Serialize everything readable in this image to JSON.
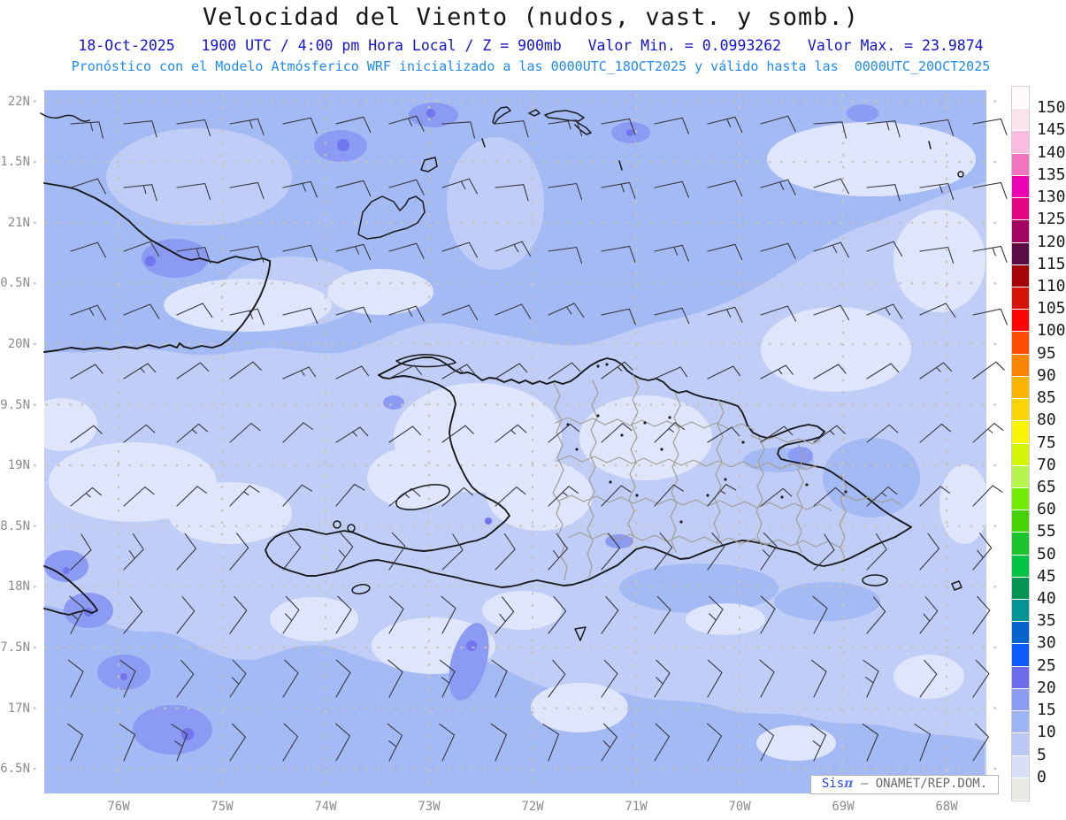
{
  "header": {
    "title": "Velocidad del Viento (nudos, vast. y somb.)",
    "line2": "18-Oct-2025   1900 UTC / 4:00 pm Hora Local / Z = 900mb   Valor Min. = 0.0993262   Valor Max. = 23.9874",
    "line3": "Pronóstico con el Modelo Atmósferico WRF inicializado a las 0000UTC_18OCT2025 y válido hasta las  0000UTC_20OCT2025",
    "title_color": "#161616",
    "line2_color": "#1212dc",
    "line3_color": "#1e8cf8"
  },
  "axes": {
    "lat_labels": [
      "22N",
      "1.5N",
      "21N",
      "0.5N",
      "20N",
      "9.5N",
      "19N",
      "8.5N",
      "18N",
      "7.5N",
      "17N",
      "6.5N"
    ],
    "lon_labels": [
      "76W",
      "75W",
      "74W",
      "73W",
      "72W",
      "71W",
      "70W",
      "69W",
      "68W"
    ],
    "label_color": "#8c8c8c"
  },
  "colorbar": {
    "tick_labels": [
      "150",
      "145",
      "140",
      "135",
      "130",
      "125",
      "120",
      "115",
      "110",
      "105",
      "100",
      "95",
      "90",
      "85",
      "80",
      "75",
      "70",
      "65",
      "60",
      "55",
      "50",
      "45",
      "40",
      "35",
      "30",
      "25",
      "20",
      "15",
      "10",
      "5",
      "0"
    ],
    "segments_top_to_bottom": [
      {
        "range": "above-150",
        "color": "#fffbfb"
      },
      {
        "range": "145-150",
        "color": "#fce4ee"
      },
      {
        "range": "140-145",
        "color": "#f8bce0"
      },
      {
        "range": "135-140",
        "color": "#f074c0"
      },
      {
        "range": "130-135",
        "color": "#ec04b4"
      },
      {
        "range": "125-130",
        "color": "#e40484"
      },
      {
        "range": "120-125",
        "color": "#a40464"
      },
      {
        "range": "115-120",
        "color": "#5c0c44"
      },
      {
        "range": "110-115",
        "color": "#a40404"
      },
      {
        "range": "105-110",
        "color": "#d41404"
      },
      {
        "range": "100-105",
        "color": "#fc0400"
      },
      {
        "range": "95-100",
        "color": "#fc4c04"
      },
      {
        "range": "90-95",
        "color": "#fc8404"
      },
      {
        "range": "85-90",
        "color": "#fcb404"
      },
      {
        "range": "80-85",
        "color": "#fcd404"
      },
      {
        "range": "75-80",
        "color": "#f8f404"
      },
      {
        "range": "70-75",
        "color": "#d4f404"
      },
      {
        "range": "65-70",
        "color": "#b4f44c"
      },
      {
        "range": "60-65",
        "color": "#74ec04"
      },
      {
        "range": "55-60",
        "color": "#44d404"
      },
      {
        "range": "50-55",
        "color": "#1cc42c"
      },
      {
        "range": "45-50",
        "color": "#04c444"
      },
      {
        "range": "40-45",
        "color": "#049454"
      },
      {
        "range": "35-40",
        "color": "#049494"
      },
      {
        "range": "30-35",
        "color": "#0464cc"
      },
      {
        "range": "25-30",
        "color": "#0c5cfc"
      },
      {
        "range": "20-25",
        "color": "#6c6cec"
      },
      {
        "range": "15-20",
        "color": "#8c9cf4"
      },
      {
        "range": "10-15",
        "color": "#9cb4f4"
      },
      {
        "range": "5-10",
        "color": "#bcc8f4"
      },
      {
        "range": "0-5",
        "color": "#d8e0f8"
      },
      {
        "range": "below-0",
        "color": "#e8e8e4"
      }
    ]
  },
  "map": {
    "palette": {
      "lv0": "#dfe5fa",
      "lv1": "#c0cdf7",
      "lv2": "#a4baf5",
      "lv3": "#8b9af2",
      "lv4": "#7276ee"
    },
    "line_colors": {
      "coastline": "#1a1a1a",
      "province_border": "#a39e94",
      "gridline": "#cbc3b2",
      "wind_barb": "#38383c"
    },
    "watermark": {
      "sis": "Sis",
      "pi": "π",
      "rest": " – ONAMET/REP.DOM.",
      "blue": "#2946e8",
      "pi_blue": "#5a6bff",
      "gray": "#6a6a6a"
    }
  }
}
